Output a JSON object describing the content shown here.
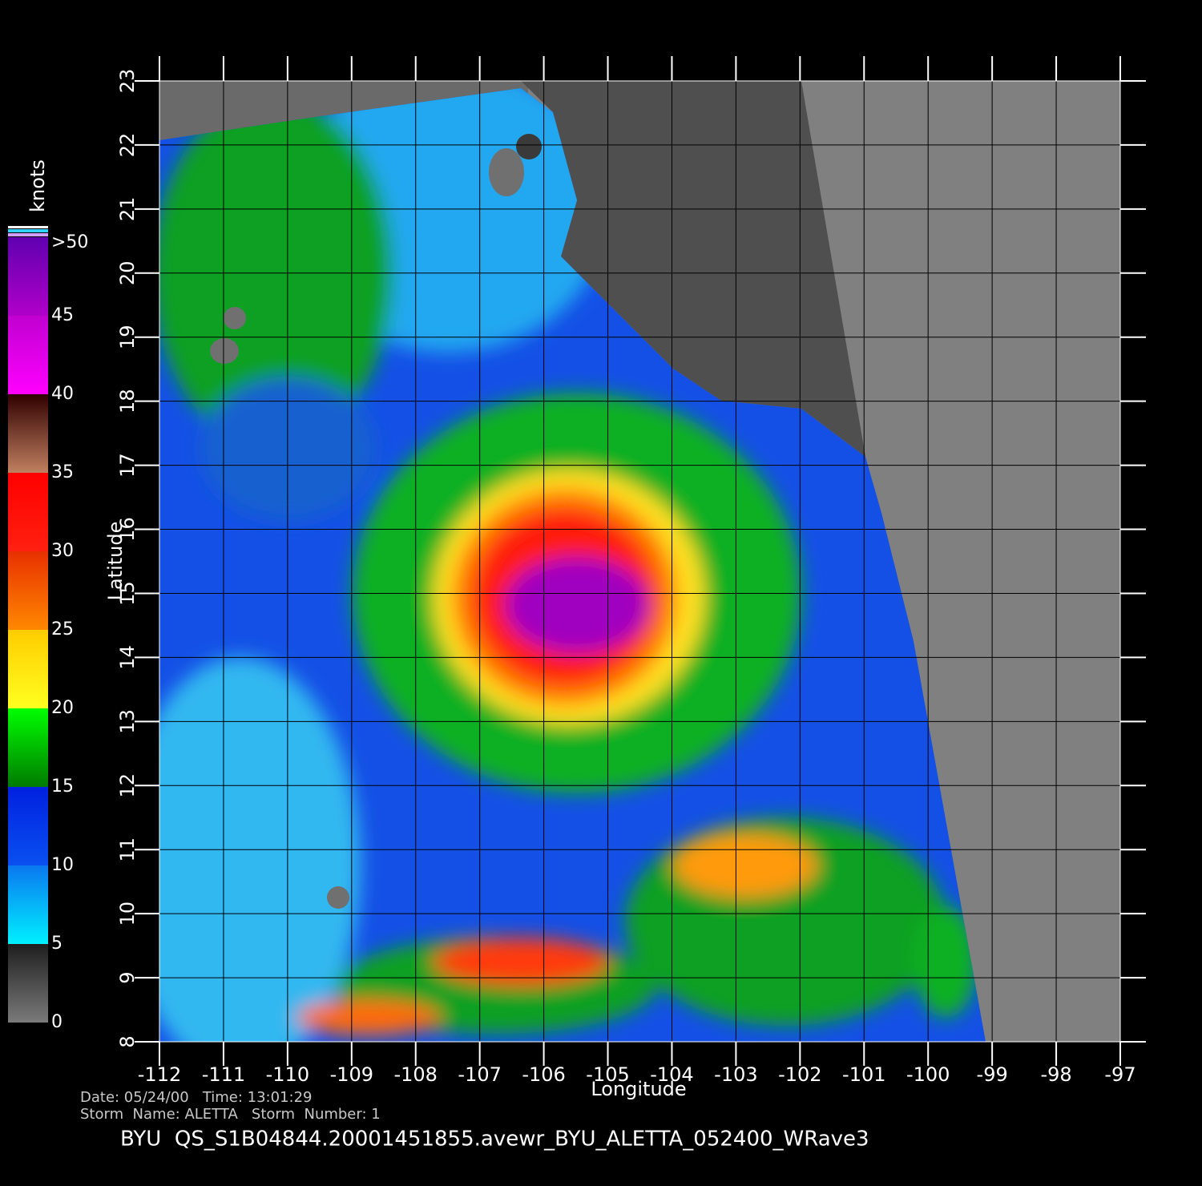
{
  "map": {
    "xlabel": "Longitude",
    "ylabel": "Latitude",
    "xlim": [
      -112,
      -97
    ],
    "ylim": [
      8,
      23
    ],
    "xticks": [
      -112,
      -111,
      -110,
      -109,
      -108,
      -107,
      -106,
      -105,
      -104,
      -103,
      -102,
      -101,
      -100,
      -99,
      -98,
      -97
    ],
    "yticks": [
      8,
      9,
      10,
      11,
      12,
      13,
      14,
      15,
      16,
      17,
      18,
      19,
      20,
      21,
      22,
      23
    ],
    "grid": true
  },
  "colorbar": {
    "title": "knots",
    "lim": [
      0,
      50
    ],
    "ticks": [
      0,
      5,
      10,
      15,
      20,
      25,
      30,
      35,
      40,
      45,
      {
        "value": 50,
        "label": ">50"
      }
    ],
    "segments": [
      [
        "#7a7a7a",
        "#1e1e1e"
      ],
      [
        "#00f0ff",
        "#0a78f0"
      ],
      [
        "#0a50f0",
        "#0020e0"
      ],
      [
        "#007a00",
        "#00ff00"
      ],
      [
        "#ffff20",
        "#ffcc00"
      ],
      [
        "#ff8800",
        "#e83000"
      ],
      [
        "#ff2010",
        "#ff0000"
      ],
      [
        "#c08060",
        "#300000"
      ],
      [
        "#ff00ff",
        "#c000d0"
      ],
      [
        "#b000c8",
        "#6000b0"
      ]
    ]
  },
  "footer": {
    "date_line": "Date: 05/24/00   Time: 13:01:29",
    "storm_line": "Storm  Name: ALETTA   Storm  Number: 1",
    "title": "BYU  QS_S1B04844.20001451855.avewr_BYU_ALETTA_052400_WRave3"
  }
}
